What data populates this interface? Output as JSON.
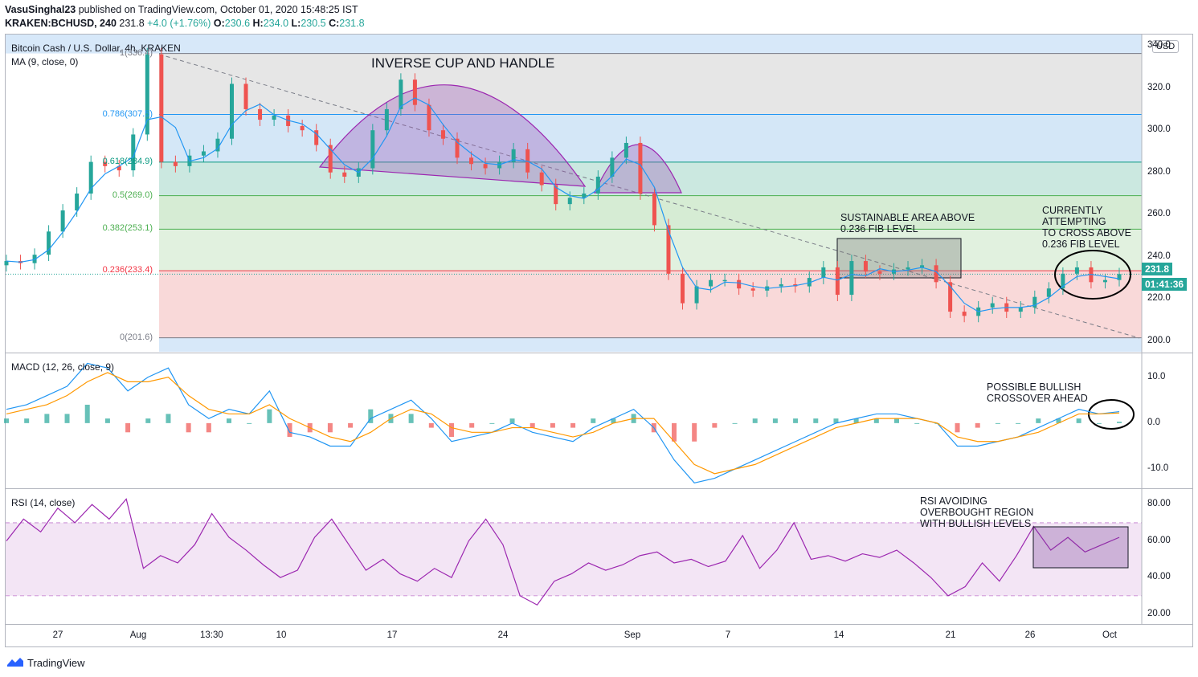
{
  "header": {
    "user": "VasuSinghal23",
    "published_text": "published on TradingView.com, October 01, 2020 15:48:25 IST",
    "symbol": "KRAKEN:BCHUSD, 240",
    "last": "231.8",
    "change": "+4.0 (+1.76%)",
    "o_label": "O:",
    "o": "230.6",
    "h_label": "H:",
    "h": "234.0",
    "l_label": "L:",
    "l": "230.5",
    "c_label": "C:",
    "c": "231.8"
  },
  "main_pane": {
    "title": "Bitcoin Cash / U.S. Dollar, 4h, KRAKEN",
    "ma_label": "MA (9, close, 0)",
    "currency_button": "USD",
    "price_tag": "231.8",
    "countdown_tag": "01:41:36"
  },
  "macd_pane": {
    "label": "MACD (12, 26, close, 9)"
  },
  "rsi_pane": {
    "label": "RSI (14, close)"
  },
  "annotations": {
    "cup": "INVERSE CUP AND HANDLE",
    "sustain_1": "SUSTAINABLE AREA ABOVE",
    "sustain_2": "0.236 FIB LEVEL",
    "current_1": "CURRENTLY",
    "current_2": "ATTEMPTING",
    "current_3": "TO CROSS ABOVE",
    "current_4": "0.236 FIB LEVEL",
    "macd_1": "POSSIBLE BULLISH",
    "macd_2": "CROSSOVER AHEAD",
    "rsi_1": "RSI AVOIDING",
    "rsi_2": "OVERBOUGHT REGION",
    "rsi_3": "WITH BULLISH LEVELS"
  },
  "fib_levels": [
    {
      "label": "1(336.4)",
      "value": 336.4,
      "color": "#787b86"
    },
    {
      "label": "0.786(307.5)",
      "value": 307.5,
      "color": "#2196f3"
    },
    {
      "label": "0.618(284.9)",
      "value": 284.9,
      "color": "#089981"
    },
    {
      "label": "0.5(269.0)",
      "value": 269.0,
      "color": "#4caf50"
    },
    {
      "label": "0.382(253.1)",
      "value": 253.1,
      "color": "#4caf50"
    },
    {
      "label": "0.236(233.4)",
      "value": 233.4,
      "color": "#f23645"
    },
    {
      "label": "0(201.6)",
      "value": 201.6,
      "color": "#787b86"
    }
  ],
  "x_axis": [
    "27",
    "Aug",
    "13:30",
    "10",
    "17",
    "24",
    "Sep",
    "7",
    "14",
    "21",
    "26",
    "Oct"
  ],
  "footer": {
    "brand": "TradingView"
  },
  "colors": {
    "up": "#26a69a",
    "down": "#ef5350",
    "ma": "#2196f3",
    "macd_signal": "#ff9800",
    "rsi": "#9c27b0"
  },
  "chart_data": [
    {
      "type": "line",
      "title": "Bitcoin Cash / U.S. Dollar, 4h, KRAKEN",
      "series": [
        {
          "name": "Bitcoin Cash / U.S. Dollar",
          "values": [
            238,
            237,
            241,
            252,
            262,
            270,
            285,
            283,
            281,
            298,
            336,
            285,
            283,
            288,
            290,
            296,
            322,
            310,
            305,
            307,
            302,
            300,
            293,
            280,
            278,
            282,
            300,
            310,
            324,
            312,
            300,
            296,
            287,
            284,
            282,
            285,
            291,
            280,
            274,
            265,
            268,
            270,
            278,
            287,
            294,
            270,
            255,
            232,
            218,
            226,
            229,
            229,
            225,
            224,
            226,
            227,
            226,
            230,
            235,
            222,
            238,
            233,
            232,
            234,
            235,
            236,
            228,
            214,
            212,
            216,
            218,
            214,
            216,
            221,
            225,
            232,
            235,
            228,
            229,
            231.8
          ]
        }
      ],
      "ylim": [
        195,
        345
      ],
      "yticks": [
        200,
        220,
        240,
        260,
        280,
        300,
        320,
        340
      ]
    },
    {
      "type": "line",
      "title": "MACD (12, 26, close, 9)",
      "series": [
        {
          "name": "MACD",
          "values": [
            3,
            4,
            6,
            8,
            13,
            12,
            7,
            10,
            12,
            4,
            1,
            3,
            2,
            7,
            -2,
            -3,
            -5,
            -5,
            1,
            3,
            5,
            1,
            -4,
            -3,
            -2,
            0,
            -2,
            -3,
            -4,
            -1,
            1,
            3,
            -1,
            -8,
            -13,
            -12,
            -10,
            -8,
            -6,
            -4,
            -2,
            0,
            1,
            2,
            2,
            1,
            0,
            -5,
            -5,
            -4,
            -3,
            -1,
            1,
            3,
            2,
            2.5
          ]
        },
        {
          "name": "Signal",
          "values": [
            2,
            3,
            4,
            6,
            9,
            11,
            9,
            9,
            10,
            6,
            3,
            2,
            2,
            4,
            1,
            -1,
            -3,
            -4,
            -2,
            1,
            3,
            2,
            -1,
            -2,
            -2,
            -1,
            -1,
            -2,
            -3,
            -2,
            0,
            1,
            1,
            -4,
            -9,
            -11,
            -10,
            -9,
            -7,
            -5,
            -3,
            -1,
            0,
            1,
            1,
            1,
            0,
            -3,
            -4,
            -4,
            -3,
            -2,
            0,
            2,
            2,
            2.2
          ]
        }
      ],
      "ylim": [
        -14,
        15
      ],
      "yticks": [
        -10.0,
        0.0,
        10.0
      ]
    },
    {
      "type": "line",
      "title": "RSI (14, close)",
      "series": [
        {
          "name": "RSI",
          "values": [
            60,
            72,
            65,
            78,
            70,
            80,
            72,
            83,
            45,
            52,
            48,
            58,
            75,
            62,
            55,
            47,
            40,
            44,
            62,
            72,
            58,
            44,
            50,
            42,
            38,
            45,
            40,
            60,
            72,
            58,
            30,
            25,
            38,
            42,
            48,
            44,
            47,
            52,
            54,
            48,
            50,
            46,
            49,
            63,
            45,
            55,
            70,
            50,
            52,
            49,
            53,
            51,
            55,
            48,
            40,
            30,
            35,
            48,
            38,
            52,
            68,
            55,
            62,
            54,
            58,
            62
          ]
        }
      ],
      "ylim": [
        15,
        88
      ],
      "yticks": [
        20.0,
        40.0,
        60.0,
        80.0
      ]
    }
  ]
}
